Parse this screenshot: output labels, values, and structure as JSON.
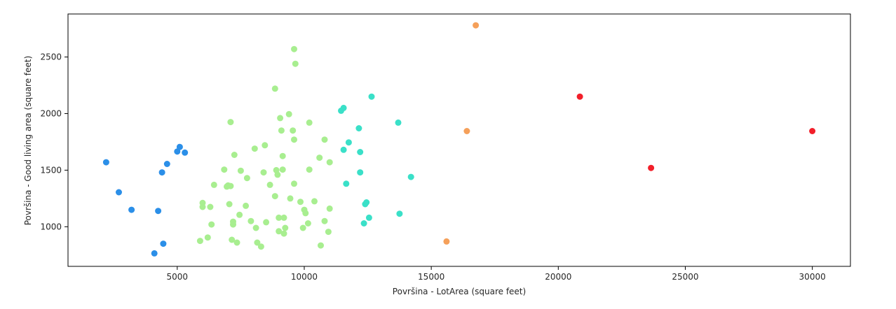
{
  "chart_data": {
    "type": "scatter",
    "xlabel": "Površina - LotArea (square feet)",
    "ylabel": "Površina - Good living area (square feet)",
    "xlim": [
      700,
      31500
    ],
    "ylim": [
      650,
      2880
    ],
    "xticks": [
      5000,
      10000,
      15000,
      20000,
      25000,
      30000
    ],
    "yticks": [
      1000,
      1500,
      2000,
      2500
    ],
    "grid": false,
    "series": [
      {
        "color": "#2b8fe8",
        "points": [
          [
            2200,
            1570
          ],
          [
            2700,
            1305
          ],
          [
            3200,
            1150
          ],
          [
            4100,
            765
          ],
          [
            4250,
            1140
          ],
          [
            4400,
            1480
          ],
          [
            4450,
            850
          ],
          [
            4600,
            1555
          ],
          [
            5000,
            1665
          ],
          [
            5100,
            1705
          ],
          [
            5300,
            1655
          ]
        ]
      },
      {
        "color": "#a8ee90",
        "points": [
          [
            5900,
            875
          ],
          [
            6000,
            1210
          ],
          [
            6000,
            1175
          ],
          [
            6200,
            905
          ],
          [
            6300,
            1175
          ],
          [
            6350,
            1020
          ],
          [
            6450,
            1370
          ],
          [
            6850,
            1505
          ],
          [
            6950,
            1355
          ],
          [
            7000,
            1365
          ],
          [
            7050,
            1200
          ],
          [
            7100,
            1925
          ],
          [
            7100,
            1360
          ],
          [
            7150,
            885
          ],
          [
            7200,
            1020
          ],
          [
            7200,
            1045
          ],
          [
            7250,
            1635
          ],
          [
            7350,
            860
          ],
          [
            7450,
            1105
          ],
          [
            7500,
            1495
          ],
          [
            7700,
            1185
          ],
          [
            7750,
            1430
          ],
          [
            7900,
            1050
          ],
          [
            8050,
            1690
          ],
          [
            8100,
            990
          ],
          [
            8150,
            860
          ],
          [
            8300,
            825
          ],
          [
            8400,
            1480
          ],
          [
            8450,
            1720
          ],
          [
            8500,
            1040
          ],
          [
            8650,
            1370
          ],
          [
            8850,
            2220
          ],
          [
            8850,
            1270
          ],
          [
            8900,
            1500
          ],
          [
            8950,
            1460
          ],
          [
            9000,
            1080
          ],
          [
            9000,
            960
          ],
          [
            9050,
            1960
          ],
          [
            9100,
            1850
          ],
          [
            9150,
            1625
          ],
          [
            9150,
            1505
          ],
          [
            9200,
            1080
          ],
          [
            9200,
            940
          ],
          [
            9250,
            990
          ],
          [
            9400,
            1995
          ],
          [
            9450,
            1250
          ],
          [
            9550,
            1850
          ],
          [
            9600,
            2570
          ],
          [
            9600,
            1770
          ],
          [
            9600,
            1380
          ],
          [
            9650,
            2440
          ],
          [
            9850,
            1220
          ],
          [
            9950,
            990
          ],
          [
            10000,
            1150
          ],
          [
            10050,
            1120
          ],
          [
            10150,
            1030
          ],
          [
            10200,
            1505
          ],
          [
            10200,
            1920
          ],
          [
            10400,
            1225
          ],
          [
            10600,
            1610
          ],
          [
            10650,
            835
          ],
          [
            10800,
            1770
          ],
          [
            10800,
            1050
          ],
          [
            10950,
            955
          ],
          [
            11000,
            1570
          ],
          [
            11000,
            1160
          ]
        ]
      },
      {
        "color": "#3ae0c8",
        "points": [
          [
            11450,
            2025
          ],
          [
            11550,
            2050
          ],
          [
            11550,
            1680
          ],
          [
            11650,
            1380
          ],
          [
            11750,
            1745
          ],
          [
            12150,
            1870
          ],
          [
            12200,
            1660
          ],
          [
            12200,
            1480
          ],
          [
            12350,
            1030
          ],
          [
            12400,
            1200
          ],
          [
            12450,
            1215
          ],
          [
            12550,
            1080
          ],
          [
            12650,
            2150
          ],
          [
            13700,
            1920
          ],
          [
            13750,
            1115
          ],
          [
            14200,
            1440
          ]
        ]
      },
      {
        "color": "#f5a05a",
        "points": [
          [
            15600,
            870
          ],
          [
            16400,
            1845
          ],
          [
            16750,
            2780
          ]
        ]
      },
      {
        "color": "#f21f2a",
        "points": [
          [
            20850,
            2150
          ],
          [
            23650,
            1520
          ],
          [
            30000,
            1845
          ]
        ]
      }
    ]
  }
}
